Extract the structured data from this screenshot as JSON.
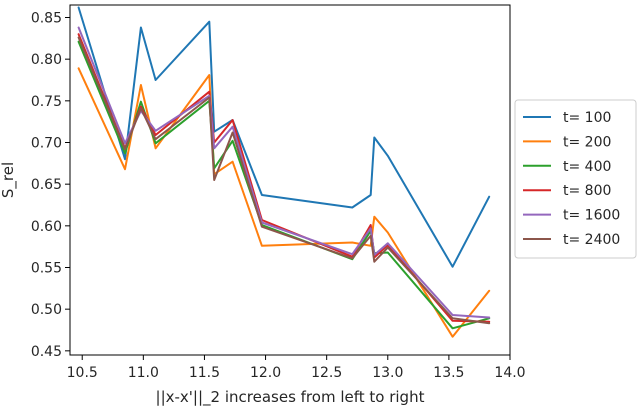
{
  "chart_data": {
    "type": "line",
    "title": "",
    "xlabel": "||x-x'||_2 increases from left to right",
    "ylabel": "S_rel",
    "xlim": [
      10.4,
      14.0
    ],
    "ylim": [
      0.445,
      0.865
    ],
    "xticks": [
      10.5,
      11.0,
      11.5,
      12.0,
      12.5,
      13.0,
      13.5,
      14.0
    ],
    "xtick_labels": [
      "10.5",
      "11.0",
      "11.5",
      "12.0",
      "12.5",
      "13.0",
      "13.5",
      "14.0"
    ],
    "yticks": [
      0.45,
      0.5,
      0.55,
      0.6,
      0.65,
      0.7,
      0.75,
      0.8,
      0.85
    ],
    "ytick_labels": [
      "0.45",
      "0.50",
      "0.55",
      "0.60",
      "0.65",
      "0.70",
      "0.75",
      "0.80",
      "0.85"
    ],
    "grid": false,
    "legend_position": "outside-right",
    "x": [
      10.47,
      10.85,
      10.98,
      11.1,
      11.54,
      11.58,
      11.73,
      11.97,
      12.71,
      12.86,
      12.89,
      13.0,
      13.53,
      13.83
    ],
    "series": [
      {
        "name": "t= 100",
        "color": "#1f77b4",
        "values": [
          0.862,
          0.68,
          0.838,
          0.775,
          0.845,
          0.713,
          0.727,
          0.637,
          0.622,
          0.637,
          0.706,
          0.684,
          0.551,
          0.635
        ]
      },
      {
        "name": "t= 200",
        "color": "#ff7f0e",
        "values": [
          0.789,
          0.668,
          0.769,
          0.693,
          0.781,
          0.662,
          0.677,
          0.576,
          0.58,
          0.576,
          0.611,
          0.592,
          0.467,
          0.522
        ]
      },
      {
        "name": "t= 400",
        "color": "#2ca02c",
        "values": [
          0.821,
          0.687,
          0.749,
          0.699,
          0.75,
          0.669,
          0.702,
          0.601,
          0.56,
          0.594,
          0.567,
          0.568,
          0.477,
          0.489
        ]
      },
      {
        "name": "t= 800",
        "color": "#d62728",
        "values": [
          0.83,
          0.693,
          0.743,
          0.709,
          0.761,
          0.7,
          0.727,
          0.607,
          0.563,
          0.601,
          0.562,
          0.577,
          0.486,
          0.485
        ]
      },
      {
        "name": "t= 1600",
        "color": "#9467bd",
        "values": [
          0.838,
          0.699,
          0.738,
          0.714,
          0.756,
          0.693,
          0.719,
          0.604,
          0.566,
          0.597,
          0.565,
          0.579,
          0.493,
          0.49
        ]
      },
      {
        "name": "t= 2400",
        "color": "#8c564b",
        "values": [
          0.826,
          0.692,
          0.741,
          0.704,
          0.754,
          0.655,
          0.712,
          0.599,
          0.561,
          0.588,
          0.557,
          0.574,
          0.489,
          0.483
        ]
      }
    ]
  }
}
